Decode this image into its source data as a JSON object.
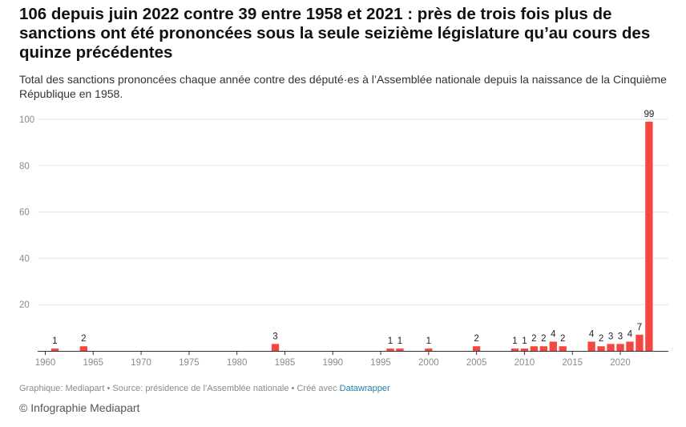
{
  "chart_data": {
    "type": "bar",
    "title": "106 depuis juin 2022 contre 39 entre 1958 et 2021 : près de trois fois plus de sanctions ont été prononcées sous la seule seizième législature qu’au cours des quinze précédentes",
    "subtitle": "Total des sanctions prononcées chaque année contre des député·es à l’Assemblée nationale depuis la naissance de la Cinquième République en 1958.",
    "x": [
      1961,
      1964,
      1984,
      1996,
      1997,
      2000,
      2005,
      2009,
      2010,
      2011,
      2012,
      2013,
      2014,
      2017,
      2018,
      2019,
      2020,
      2021,
      2022,
      2023
    ],
    "values": [
      1,
      2,
      3,
      1,
      1,
      1,
      2,
      1,
      1,
      2,
      2,
      4,
      2,
      4,
      2,
      3,
      3,
      4,
      7,
      99
    ],
    "xlim": [
      1958,
      2024
    ],
    "ylim": [
      0,
      100
    ],
    "x_ticks": [
      "1960",
      "1965",
      "1970",
      "1975",
      "1980",
      "1985",
      "1990",
      "1995",
      "2000",
      "2005",
      "2010",
      "2015",
      "2020"
    ],
    "y_ticks": [
      "20",
      "40",
      "60",
      "80",
      "100"
    ],
    "xlabel": "",
    "ylabel": "",
    "grid": true,
    "bar_color": "#f5473d"
  },
  "footer": {
    "source_text": "Graphique: Mediapart • Source: présidence de l’Assemblée nationale • Créé avec",
    "source_link": "Datawrapper",
    "credit": "© Infographie Mediapart"
  }
}
